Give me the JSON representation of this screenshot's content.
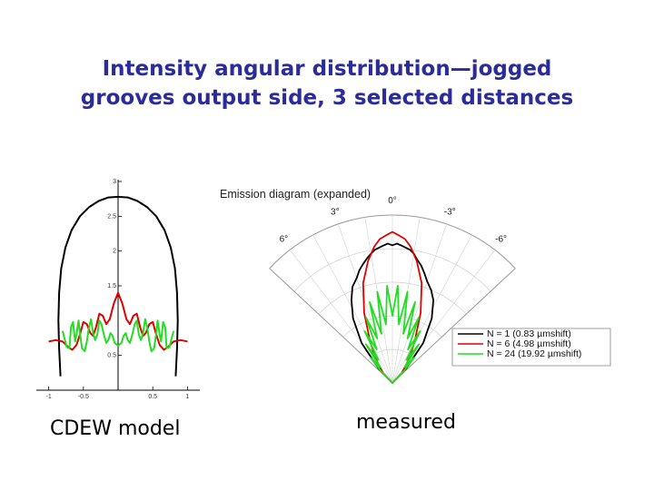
{
  "slide": {
    "title_line1": "Intensity angular distribution—jogged",
    "title_line2": "grooves output side, 3 selected distances",
    "caption_left": "CDEW model",
    "caption_right": "measured"
  },
  "chart_data": [
    {
      "type": "line",
      "xlim": [
        -1.1,
        1.1
      ],
      "ylim": [
        0,
        3
      ],
      "x_ticks": [
        -1,
        -0.5,
        0,
        0.5,
        1
      ],
      "x_tick_labels": [
        "-1",
        "-0.5",
        "",
        "0.5",
        "1"
      ],
      "y_ticks": [
        0.5,
        1.5,
        2,
        2.5,
        3
      ],
      "y_tick_labels": [
        "0.5",
        "1.5",
        "2",
        "2.5",
        "3"
      ],
      "series": [
        {
          "color": "#000000",
          "x": [
            -0.83,
            -0.85,
            -0.86,
            -0.85,
            -0.82,
            -0.76,
            -0.67,
            -0.55,
            -0.42,
            -0.28,
            -0.14,
            0,
            0.14,
            0.28,
            0.42,
            0.55,
            0.67,
            0.76,
            0.82,
            0.85,
            0.86,
            0.85,
            0.83
          ],
          "y": [
            0.2,
            0.6,
            1.0,
            1.4,
            1.75,
            2.05,
            2.3,
            2.5,
            2.63,
            2.72,
            2.77,
            2.78,
            2.77,
            2.72,
            2.63,
            2.5,
            2.3,
            2.05,
            1.75,
            1.4,
            1.0,
            0.6,
            0.2
          ]
        },
        {
          "color": "#e00000",
          "x": [
            -1.0,
            -0.9,
            -0.8,
            -0.72,
            -0.66,
            -0.6,
            -0.55,
            -0.5,
            -0.45,
            -0.4,
            -0.36,
            -0.32,
            -0.27,
            -0.22,
            -0.17,
            -0.12,
            -0.06,
            0,
            0.06,
            0.12,
            0.17,
            0.22,
            0.27,
            0.32,
            0.36,
            0.4,
            0.45,
            0.5,
            0.55,
            0.6,
            0.66,
            0.72,
            0.8,
            0.9,
            1.0
          ],
          "y": [
            0.7,
            0.72,
            0.7,
            0.62,
            0.58,
            0.65,
            0.8,
            0.98,
            0.95,
            0.82,
            0.78,
            0.9,
            1.1,
            1.07,
            0.95,
            1.02,
            1.25,
            1.4,
            1.25,
            1.02,
            0.95,
            1.07,
            1.1,
            0.9,
            0.78,
            0.82,
            0.95,
            0.98,
            0.8,
            0.65,
            0.58,
            0.62,
            0.7,
            0.72,
            0.7
          ]
        },
        {
          "color": "#22dd22",
          "x": [
            -0.8,
            -0.74,
            -0.7,
            -0.68,
            -0.65,
            -0.62,
            -0.6,
            -0.57,
            -0.55,
            -0.52,
            -0.48,
            -0.45,
            -0.42,
            -0.39,
            -0.36,
            -0.33,
            -0.3,
            -0.27,
            -0.24,
            -0.2,
            -0.17,
            -0.14,
            -0.11,
            -0.08,
            -0.05,
            0,
            0.05,
            0.08,
            0.11,
            0.14,
            0.17,
            0.2,
            0.24,
            0.27,
            0.3,
            0.33,
            0.36,
            0.39,
            0.42,
            0.45,
            0.48,
            0.52,
            0.55,
            0.57,
            0.6,
            0.62,
            0.65,
            0.68,
            0.7,
            0.74,
            0.8
          ],
          "y": [
            0.85,
            0.62,
            0.6,
            0.9,
            0.98,
            0.7,
            0.8,
            1.0,
            0.82,
            0.6,
            0.56,
            0.7,
            0.9,
            1.02,
            0.82,
            0.72,
            0.8,
            1.0,
            0.95,
            0.78,
            0.68,
            0.72,
            0.82,
            0.78,
            0.68,
            0.64,
            0.68,
            0.78,
            0.82,
            0.72,
            0.68,
            0.78,
            0.95,
            1.0,
            0.8,
            0.72,
            0.82,
            1.02,
            0.9,
            0.7,
            0.56,
            0.6,
            0.82,
            1.0,
            0.8,
            0.7,
            0.98,
            0.9,
            0.6,
            0.62,
            0.85
          ]
        }
      ]
    },
    {
      "type": "polar",
      "title": "Emission diagram (expanded)",
      "angle_range_deg": [
        -7.5,
        7.5
      ],
      "angle_labels": [
        {
          "deg": 0,
          "label": "0°"
        },
        {
          "deg": 3,
          "label": "3°"
        },
        {
          "deg": -3,
          "label": "-3°"
        },
        {
          "deg": 6,
          "label": "6°"
        },
        {
          "deg": -6,
          "label": "-6°"
        }
      ],
      "legend_position": "bottom-right",
      "series": [
        {
          "name": "N = 1 (0.83 µmshift)",
          "color": "#000000",
          "angles_deg": [
            7.0,
            6.0,
            5.0,
            4.2,
            3.6,
            3.0,
            2.6,
            2.2,
            1.8,
            1.5,
            1.2,
            0.9,
            0.6,
            0.3,
            0,
            -0.3,
            -0.6,
            -0.9,
            -1.2,
            -1.5,
            -1.8,
            -2.2,
            -2.6,
            -3.0,
            -3.6,
            -4.2,
            -5.0,
            -6.0,
            -7.0
          ],
          "r": [
            0.12,
            0.3,
            0.45,
            0.55,
            0.62,
            0.66,
            0.7,
            0.73,
            0.76,
            0.78,
            0.8,
            0.81,
            0.82,
            0.83,
            0.82,
            0.83,
            0.82,
            0.81,
            0.8,
            0.78,
            0.75,
            0.72,
            0.68,
            0.64,
            0.6,
            0.55,
            0.45,
            0.3,
            0.12
          ]
        },
        {
          "name": "N = 6 (4.98 µmshift)",
          "color": "#e00000",
          "angles_deg": [
            7.0,
            5.5,
            4.5,
            3.5,
            2.6,
            1.8,
            1.2,
            0.8,
            0.4,
            0,
            -0.4,
            -0.8,
            -1.2,
            -1.8,
            -2.6,
            -3.5,
            -4.5,
            -5.5,
            -7.0
          ],
          "r": [
            0.08,
            0.18,
            0.28,
            0.45,
            0.62,
            0.74,
            0.82,
            0.86,
            0.88,
            0.9,
            0.88,
            0.86,
            0.82,
            0.74,
            0.62,
            0.45,
            0.28,
            0.18,
            0.08
          ]
        },
        {
          "name": "N = 24 (19.92 µmshift)",
          "color": "#22dd22",
          "angles_deg": [
            7.0,
            6.5,
            6.0,
            5.5,
            5.0,
            4.5,
            4.0,
            3.5,
            3.0,
            2.5,
            2.0,
            1.5,
            1.0,
            0.5,
            0,
            -0.5,
            -1.0,
            -1.5,
            -2.0,
            -2.5,
            -3.0,
            -3.5,
            -4.0,
            -4.5,
            -5.0,
            -5.5,
            -6.0,
            -6.5,
            -7.0
          ],
          "r": [
            0.1,
            0.2,
            0.12,
            0.28,
            0.16,
            0.35,
            0.22,
            0.42,
            0.28,
            0.5,
            0.3,
            0.55,
            0.35,
            0.58,
            0.4,
            0.58,
            0.35,
            0.55,
            0.3,
            0.5,
            0.28,
            0.42,
            0.22,
            0.35,
            0.16,
            0.28,
            0.12,
            0.2,
            0.1
          ]
        }
      ]
    }
  ]
}
